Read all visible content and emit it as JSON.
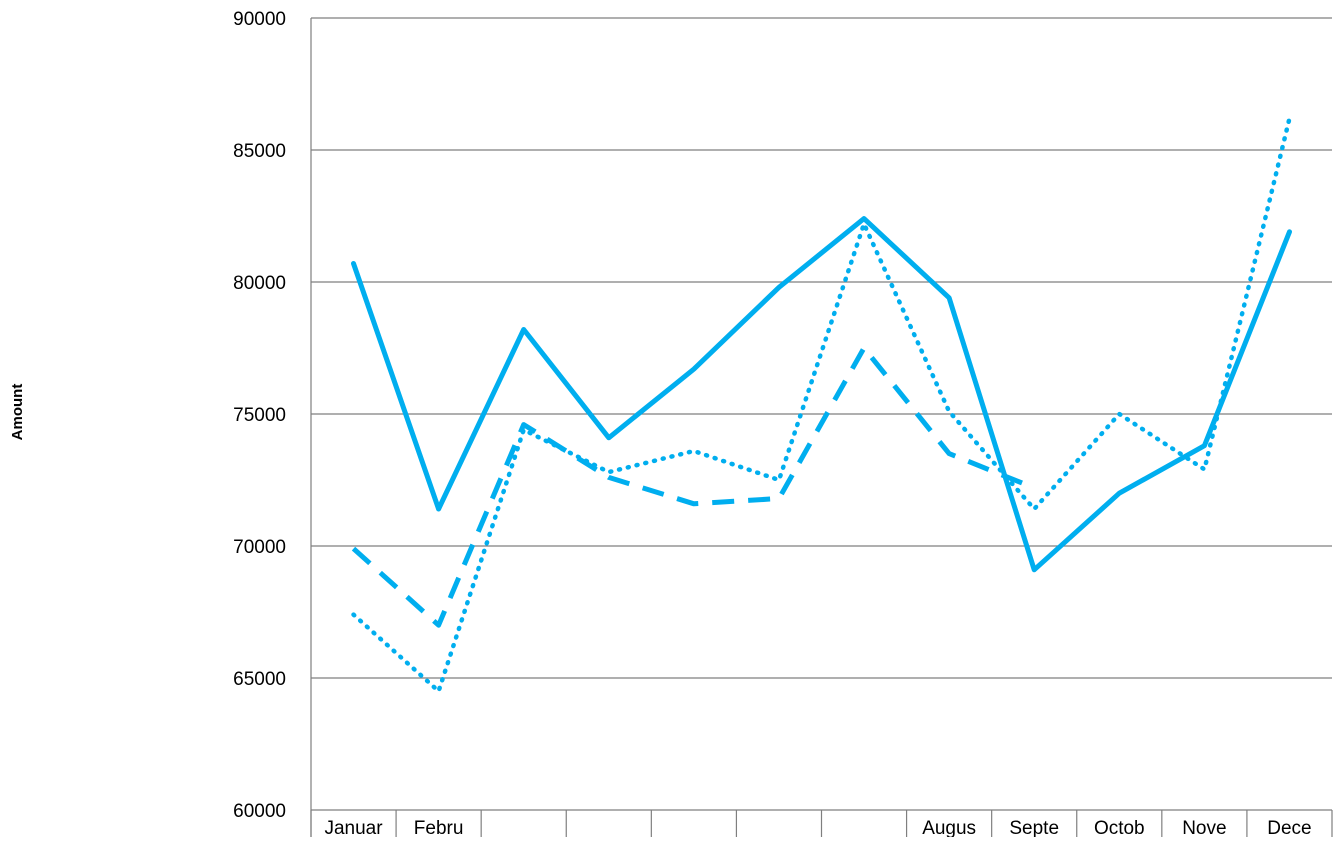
{
  "chart_data": {
    "type": "line",
    "title": "",
    "xlabel": "",
    "ylabel": "Amount",
    "ylim": [
      60000,
      90000
    ],
    "yticks": [
      60000,
      65000,
      70000,
      75000,
      80000,
      85000,
      90000
    ],
    "grid": true,
    "legend": "none",
    "categories": [
      "Januar",
      "Febru",
      "",
      "",
      "",
      "",
      "",
      "Augus",
      "Septe",
      "Octob",
      "Nove",
      "Dece"
    ],
    "series": [
      {
        "style": "solid",
        "color": "#00AEEF",
        "values": [
          80700,
          71400,
          78200,
          74100,
          76700,
          79800,
          82400,
          79400,
          69100,
          72000,
          73800,
          81900
        ]
      },
      {
        "style": "dashed",
        "color": "#00AEEF",
        "values": [
          69900,
          67000,
          74600,
          72600,
          71600,
          71800,
          77500,
          73500,
          72200,
          null,
          null,
          null
        ]
      },
      {
        "style": "dotted",
        "color": "#00AEEF",
        "values": [
          67400,
          64500,
          74400,
          72800,
          73600,
          72500,
          82200,
          75100,
          71400,
          75000,
          72900,
          86200
        ]
      }
    ]
  }
}
